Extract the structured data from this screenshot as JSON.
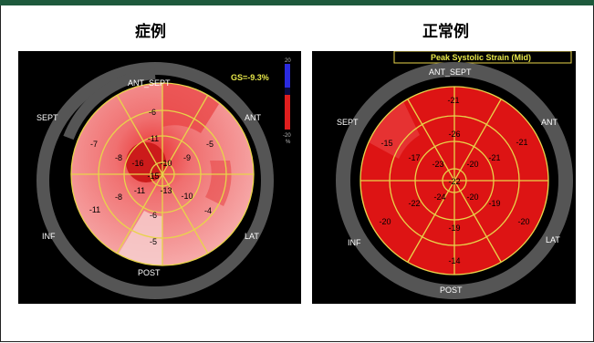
{
  "left": {
    "title": "症例",
    "gs": "GS=-9.3%",
    "scale": {
      "top": "20",
      "bottom": "-20",
      "unit": "%"
    },
    "labels": {
      "ant_sept": "ANT_SEPT",
      "sept": "SEPT",
      "ant": "ANT",
      "inf": "INF",
      "lat": "LAT",
      "post": "POST"
    },
    "values": {
      "outer": [
        "-6",
        "-5",
        "-4",
        "-5",
        "-11",
        "-7"
      ],
      "mid": [
        "-11",
        "-9",
        "-10",
        "-6",
        "-8",
        "-8"
      ],
      "inner": [
        "-10",
        "-13",
        "-11",
        "-16"
      ],
      "apex": "-15"
    }
  },
  "right": {
    "title": "正常例",
    "header": "Peak Systolic Strain (Mid)",
    "labels": {
      "ant_sept": "ANT_SEPT",
      "sept": "SEPT",
      "ant": "ANT",
      "inf": "INF",
      "lat": "LAT",
      "post": "POST"
    },
    "values": {
      "outer": [
        "-21",
        "-21",
        "-20",
        "-14",
        "-20",
        "-15"
      ],
      "mid": [
        "-26",
        "-21",
        "-19",
        "-19",
        "-22",
        "-17"
      ],
      "inner": [
        "-20",
        "-20",
        "-24",
        "-23"
      ],
      "apex": "-22"
    }
  },
  "colors": {
    "bar": "#1e5a3c",
    "grid": "#e8d44a",
    "ring": "#555555",
    "gs": "#e8e84a"
  }
}
